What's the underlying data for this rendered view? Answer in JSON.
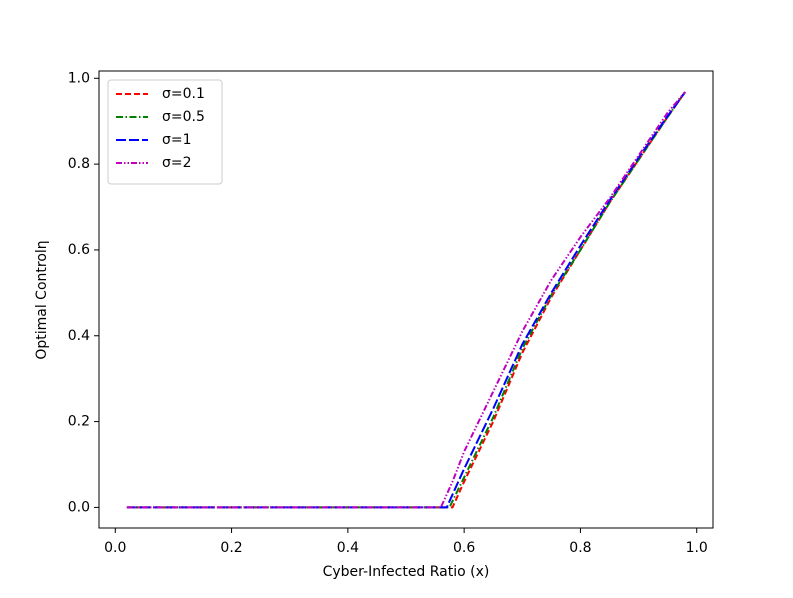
{
  "chart_data": {
    "type": "line",
    "xlabel": "Cyber-Infected Ratio (x)",
    "ylabel": "Optimal Controlη",
    "x": [
      0.02,
      0.1,
      0.2,
      0.3,
      0.4,
      0.5,
      0.56,
      0.57,
      0.575,
      0.58,
      0.6,
      0.65,
      0.7,
      0.75,
      0.8,
      0.85,
      0.9,
      0.95,
      0.98
    ],
    "series": [
      {
        "name": "σ=0.1",
        "color": "#ff0000",
        "dash": "6,3",
        "values": [
          0,
          0,
          0,
          0,
          0,
          0,
          0,
          0,
          0,
          0,
          0.06,
          0.2,
          0.36,
          0.49,
          0.6,
          0.71,
          0.81,
          0.91,
          0.968
        ]
      },
      {
        "name": "σ=0.5",
        "color": "#008000",
        "dash": "7,2.5,1.5,2.5",
        "values": [
          0,
          0,
          0,
          0,
          0,
          0,
          0,
          0,
          0,
          0.015,
          0.07,
          0.21,
          0.37,
          0.495,
          0.6,
          0.71,
          0.81,
          0.91,
          0.968
        ]
      },
      {
        "name": "σ=1",
        "color": "#0000ff",
        "dash": "10,3",
        "values": [
          0,
          0,
          0,
          0,
          0,
          0,
          0,
          0,
          0.015,
          0.03,
          0.09,
          0.23,
          0.38,
          0.5,
          0.61,
          0.715,
          0.815,
          0.912,
          0.968
        ]
      },
      {
        "name": "σ=2",
        "color": "#bf00bf",
        "dash": "6,2,1.5,2,1.5,2",
        "values": [
          0,
          0,
          0,
          0,
          0,
          0,
          0,
          0.03,
          0.045,
          0.06,
          0.13,
          0.27,
          0.41,
          0.53,
          0.63,
          0.72,
          0.82,
          0.92,
          0.968
        ]
      }
    ],
    "xlim": [
      -0.028,
      1.028
    ],
    "ylim": [
      -0.048,
      1.017
    ],
    "xticks": [
      {
        "value": 0,
        "label": "0.0"
      },
      0.2,
      0.4,
      0.6,
      0.8,
      {
        "value": 1,
        "label": "1.0"
      }
    ],
    "yticks": [
      {
        "value": 0,
        "label": "0.0"
      },
      0.2,
      0.4,
      0.6,
      0.8,
      {
        "value": 1,
        "label": "1.0"
      }
    ],
    "legend": "upper left"
  }
}
